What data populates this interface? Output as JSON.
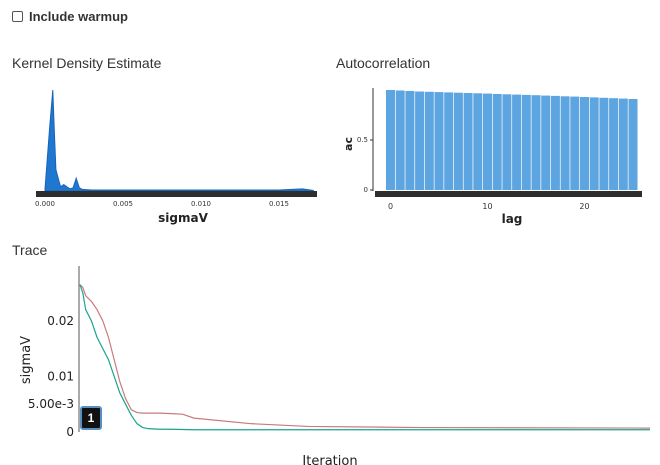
{
  "warmup": {
    "label": "Include warmup",
    "checked": false
  },
  "kde": {
    "title": "Kernel Density Estimate",
    "chart_data": {
      "type": "area",
      "xlabel": "sigmaV",
      "ylabel": "",
      "xlim": [
        0,
        0.0175
      ],
      "x_ticks": [
        "0.000",
        "0.005",
        "0.010",
        "0.015"
      ],
      "color": "#1f77d0",
      "x": [
        0,
        0.0003,
        0.0005,
        0.0006,
        0.0007,
        0.0009,
        0.001,
        0.0012,
        0.0014,
        0.0016,
        0.0018,
        0.002,
        0.0022,
        0.0024,
        0.003,
        0.005,
        0.01,
        0.015,
        0.0165,
        0.017,
        0.0172
      ],
      "density": [
        2,
        60,
        95,
        55,
        20,
        9,
        4,
        6,
        4,
        2,
        3,
        12,
        3,
        1.5,
        1,
        1,
        1,
        1,
        2,
        1,
        0.5
      ]
    }
  },
  "autocorrelation": {
    "title": "Autocorrelation",
    "chart_data": {
      "type": "bar",
      "xlabel": "lag",
      "ylabel": "ac",
      "ylim": [
        0,
        1
      ],
      "y_ticks": [
        "0",
        "0.5"
      ],
      "x_ticks": [
        "0",
        "10",
        "20"
      ],
      "color": "#5da5e0",
      "lags": [
        0,
        1,
        2,
        3,
        4,
        5,
        6,
        7,
        8,
        9,
        10,
        11,
        12,
        13,
        14,
        15,
        16,
        17,
        18,
        19,
        20,
        21,
        22,
        23,
        24,
        25
      ],
      "values": [
        1.0,
        0.995,
        0.99,
        0.985,
        0.982,
        0.979,
        0.976,
        0.973,
        0.97,
        0.967,
        0.964,
        0.96,
        0.957,
        0.954,
        0.951,
        0.948,
        0.944,
        0.941,
        0.937,
        0.934,
        0.93,
        0.926,
        0.922,
        0.918,
        0.914,
        0.91
      ]
    }
  },
  "trace": {
    "title": "Trace",
    "badge": "1",
    "chart_data": {
      "type": "line",
      "xlabel": "Iteration",
      "ylabel": "sigmaV",
      "ylim": [
        0,
        0.0295
      ],
      "y_ticks": [
        {
          "label": "0",
          "value": 0
        },
        {
          "label": "5.00e-3",
          "value": 0.005
        },
        {
          "label": "0.01",
          "value": 0.01
        },
        {
          "label": "0.02",
          "value": 0.02
        }
      ],
      "xlim": [
        0,
        100
      ],
      "series": [
        {
          "color": "#c97a7a",
          "x": [
            0,
            0.5,
            1,
            2,
            3,
            4,
            5,
            6,
            7,
            8,
            9,
            10,
            11,
            12,
            14,
            16,
            18,
            20,
            30,
            40,
            60,
            100
          ],
          "y": [
            0.0265,
            0.026,
            0.0245,
            0.0235,
            0.022,
            0.02,
            0.017,
            0.013,
            0.009,
            0.006,
            0.004,
            0.0035,
            0.0034,
            0.0034,
            0.0034,
            0.0033,
            0.0032,
            0.0025,
            0.0015,
            0.001,
            0.0008,
            0.0007
          ]
        },
        {
          "color": "#1aa38f",
          "x": [
            0,
            0.5,
            1,
            2,
            3,
            4,
            5,
            6,
            7,
            8,
            9,
            10,
            11,
            12,
            14,
            16,
            20,
            40,
            100
          ],
          "y": [
            0.0265,
            0.025,
            0.022,
            0.02,
            0.017,
            0.015,
            0.013,
            0.01,
            0.007,
            0.005,
            0.003,
            0.0015,
            0.0008,
            0.0006,
            0.0005,
            0.0005,
            0.0004,
            0.0004,
            0.0004
          ]
        }
      ]
    }
  }
}
